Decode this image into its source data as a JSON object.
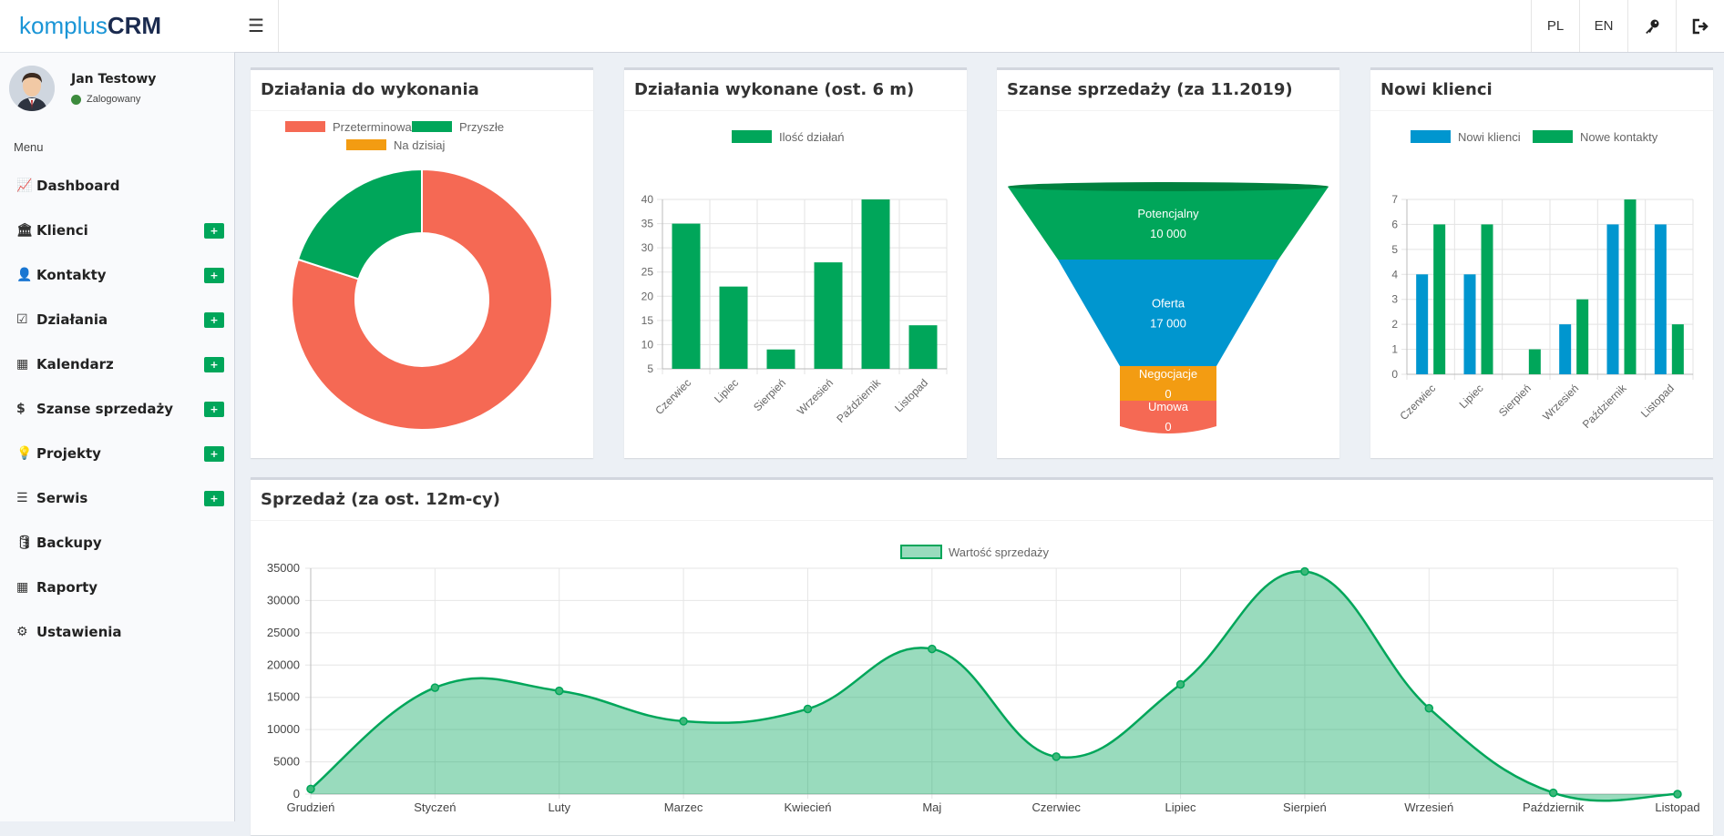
{
  "app": {
    "logo_light": "komplus",
    "logo_bold": "CRM"
  },
  "user": {
    "name": "Jan Testowy",
    "status": "Zalogowany"
  },
  "menu": {
    "header": "Menu",
    "items": [
      {
        "label": "Dashboard",
        "icon": "chart-line-icon",
        "glyph": "📈",
        "plus": false
      },
      {
        "label": "Klienci",
        "icon": "bank-icon",
        "glyph": "🏛",
        "plus": true
      },
      {
        "label": "Kontakty",
        "icon": "user-icon",
        "glyph": "👤",
        "plus": true
      },
      {
        "label": "Działania",
        "icon": "check-square-icon",
        "glyph": "☑",
        "plus": true
      },
      {
        "label": "Kalendarz",
        "icon": "calendar-icon",
        "glyph": "▦",
        "plus": true
      },
      {
        "label": "Szanse sprzedaży",
        "icon": "dollar-icon",
        "glyph": "$",
        "plus": true
      },
      {
        "label": "Projekty",
        "icon": "lightbulb-icon",
        "glyph": "💡",
        "plus": true
      },
      {
        "label": "Serwis",
        "icon": "tasks-icon",
        "glyph": "☰",
        "plus": true
      },
      {
        "label": "Backupy",
        "icon": "database-icon",
        "glyph": "🛢",
        "plus": false
      },
      {
        "label": "Raporty",
        "icon": "table-icon",
        "glyph": "▦",
        "plus": false
      },
      {
        "label": "Ustawienia",
        "icon": "cogs-icon",
        "glyph": "⚙",
        "plus": false
      }
    ],
    "plus_label": "+"
  },
  "topbar": {
    "menu_icon": "hamburger-icon",
    "lang_pl": "PL",
    "lang_en": "EN",
    "key_icon": "key-icon",
    "logout_icon": "logout-icon"
  },
  "colors": {
    "red": "#f56954",
    "green": "#00a65a",
    "orange": "#f39c12",
    "blue": "#0096cf",
    "area_fill": "rgba(0,166,90,0.4)"
  },
  "boxes": {
    "todo_title": "Działania do wykonania",
    "done_title": "Działania wykonane (ost. 6 m)",
    "funnel_title": "Szanse sprzedaży (za 11.2019)",
    "clients_title": "Nowi klienci",
    "sales_title": "Sprzedaż (za ost. 12m-cy)"
  },
  "chart_data": [
    {
      "type": "doughnut",
      "labels": [
        "Przeterminowane",
        "Przyszłe",
        "Na dzisiaj"
      ],
      "values": [
        80,
        20,
        0
      ],
      "colors": [
        "#f56954",
        "#00a65a",
        "#f39c12"
      ]
    },
    {
      "type": "bar",
      "categories": [
        "Czerwiec",
        "Lipiec",
        "Sierpień",
        "Wrzesień",
        "Październik",
        "Listopad"
      ],
      "series": [
        {
          "name": "Ilość działań",
          "values": [
            35,
            22,
            9,
            27,
            40,
            14
          ]
        }
      ],
      "ylim": [
        5,
        40
      ],
      "yticks": [
        5,
        10,
        15,
        20,
        25,
        30,
        35,
        40
      ],
      "grid": true
    },
    {
      "type": "funnel",
      "stages": [
        {
          "label": "Potencjalny",
          "value": "10 000",
          "color": "#00a65a"
        },
        {
          "label": "Oferta",
          "value": "17 000",
          "color": "#0096cf"
        },
        {
          "label": "Negocjacje",
          "value": "0",
          "color": "#f39c12"
        },
        {
          "label": "Umowa",
          "value": "0",
          "color": "#f56954"
        }
      ]
    },
    {
      "type": "bar",
      "categories": [
        "Czerwiec",
        "Lipiec",
        "Sierpień",
        "Wrzesień",
        "Październik",
        "Listopad"
      ],
      "series": [
        {
          "name": "Nowi klienci",
          "values": [
            4,
            4,
            0,
            2,
            6,
            6
          ],
          "color": "#0096cf"
        },
        {
          "name": "Nowe kontakty",
          "values": [
            6,
            6,
            1,
            3,
            7,
            2
          ],
          "color": "#00a65a"
        }
      ],
      "ylim": [
        0,
        7
      ],
      "yticks": [
        0,
        1,
        2,
        3,
        4,
        5,
        6,
        7
      ],
      "grid": true
    },
    {
      "type": "area",
      "categories": [
        "Grudzień",
        "Styczeń",
        "Luty",
        "Marzec",
        "Kwiecień",
        "Maj",
        "Czerwiec",
        "Lipiec",
        "Sierpień",
        "Wrzesień",
        "Październik",
        "Listopad"
      ],
      "series": [
        {
          "name": "Wartość sprzedaży",
          "values": [
            800,
            16500,
            16000,
            11300,
            13200,
            22500,
            5800,
            17000,
            34500,
            13300,
            200,
            0
          ]
        }
      ],
      "ylim": [
        0,
        35000
      ],
      "yticks": [
        0,
        5000,
        10000,
        15000,
        20000,
        25000,
        30000,
        35000
      ],
      "grid": true
    }
  ]
}
